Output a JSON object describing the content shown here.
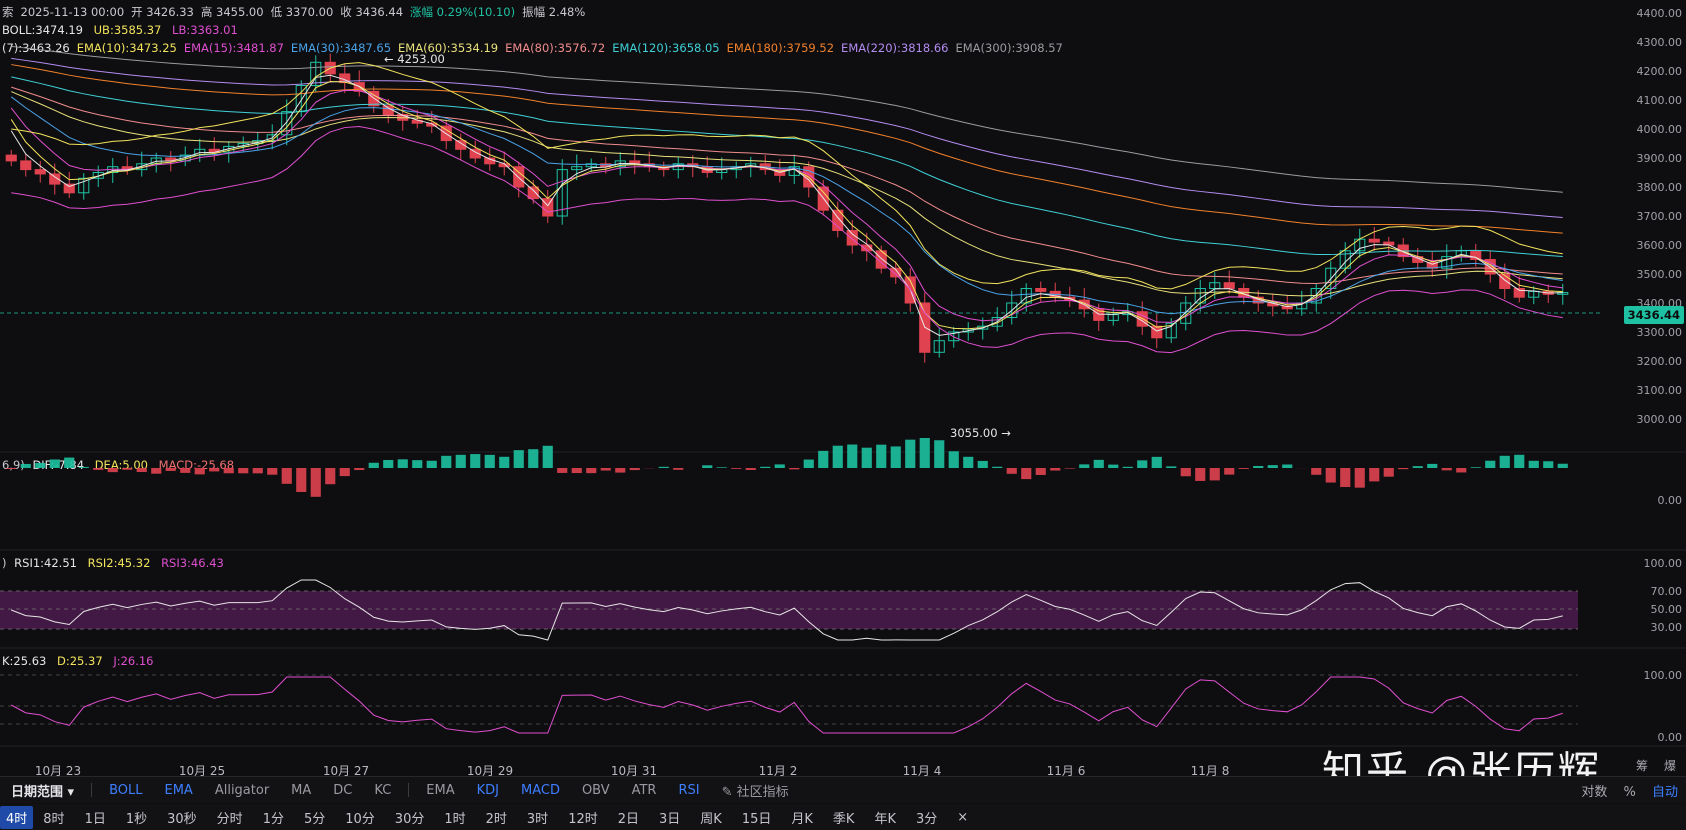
{
  "header": {
    "ohlc_line": [
      "索",
      "2025-11-13 00:00",
      "开 3426.33",
      "高 3455.00",
      "低 3370.00",
      "收 3436.44",
      "涨幅 0.29%(10.10)",
      "振幅 2.48%"
    ],
    "boll": {
      "name": "BOLL:3474.19",
      "ub": "UB:3585.37",
      "lb": "LB:3363.01"
    },
    "ema": [
      {
        "label": "(7):3463.26",
        "color": "#e6e6e6"
      },
      {
        "label": "EMA(10):3473.25",
        "color": "#f2e35b"
      },
      {
        "label": "EMA(15):3481.87",
        "color": "#e04fcf"
      },
      {
        "label": "EMA(30):3487.65",
        "color": "#4aa3e8"
      },
      {
        "label": "EMA(60):3534.19",
        "color": "#e8e07a"
      },
      {
        "label": "EMA(80):3576.72",
        "color": "#f08c8c"
      },
      {
        "label": "EMA(120):3658.05",
        "color": "#3fd0d6"
      },
      {
        "label": "EMA(180):3759.52",
        "color": "#f2812b"
      },
      {
        "label": "EMA(220):3818.66",
        "color": "#b48cf0"
      },
      {
        "label": "EMA(300):3908.57",
        "color": "#9a9aa0"
      }
    ],
    "macd": {
      "prefix": "6,9)",
      "dif": "DIF:-7.84",
      "dea": "DEA:5.00",
      "macd": "MACD:-25.68"
    },
    "rsi": {
      "prefix": ")",
      "rsi1": "RSI1:42.51",
      "rsi2": "RSI2:45.32",
      "rsi3": "RSI3:46.43"
    },
    "kdj": {
      "k": "K:25.63",
      "d": "D:25.37",
      "j": "J:26.16"
    }
  },
  "price_axis": [
    "4400.00",
    "4300.00",
    "4200.00",
    "4100.00",
    "4000.00",
    "3900.00",
    "3800.00",
    "3700.00",
    "3600.00",
    "3500.00",
    "3400.00",
    "3300.00",
    "3200.00",
    "3100.00",
    "3000.00"
  ],
  "current_price": "3436.44",
  "macd_axis": [
    "0.00"
  ],
  "rsi_axis": [
    "100.00",
    "70.00",
    "50.00",
    "30.00"
  ],
  "kdj_axis": [
    "100.00",
    "0.00"
  ],
  "annotations": {
    "high": "← 4253.00",
    "low": "3055.00 →"
  },
  "x_axis": [
    "10月 23",
    "10月 25",
    "10月 27",
    "10月 29",
    "10月 31",
    "11月 2",
    "11月 4",
    "11月 6",
    "11月 8"
  ],
  "toolbar": {
    "range": "日期范围",
    "indicators_main": [
      "BOLL",
      "EMA",
      "Alligator",
      "MA",
      "DC",
      "KC"
    ],
    "indicators_sub": [
      "EMA",
      "KDJ",
      "MACD",
      "OBV",
      "ATR",
      "RSI"
    ],
    "community": "社区指标",
    "right": [
      "对数",
      "%",
      "自动"
    ]
  },
  "timeframes": [
    "4时",
    "8时",
    "1日",
    "1秒",
    "30秒",
    "分时",
    "1分",
    "5分",
    "10分",
    "30分",
    "1时",
    "2时",
    "3时",
    "12时",
    "2日",
    "3日",
    "周K",
    "15日",
    "月K",
    "季K",
    "年K",
    "3分",
    "×"
  ],
  "watermark": "知乎 @张历辉",
  "right_edge": [
    "筹",
    "爆"
  ],
  "chart_data": {
    "type": "candlestick",
    "title": "",
    "x_labels": [
      "10月 23",
      "10月 25",
      "10月 27",
      "10月 29",
      "10月 31",
      "11月 2",
      "11月 4",
      "11月 6",
      "11月 8"
    ],
    "y_range": [
      2950,
      4450
    ],
    "bars_per_day": 6,
    "candles_close": [
      3890,
      3860,
      3845,
      3810,
      3780,
      3830,
      3850,
      3870,
      3860,
      3880,
      3900,
      3890,
      3910,
      3930,
      3920,
      3940,
      3950,
      3960,
      3980,
      4060,
      4150,
      4230,
      4190,
      4160,
      4130,
      4080,
      4050,
      4030,
      4020,
      4010,
      3960,
      3930,
      3900,
      3880,
      3870,
      3800,
      3760,
      3700,
      3860,
      3870,
      3880,
      3870,
      3890,
      3880,
      3870,
      3860,
      3880,
      3870,
      3850,
      3860,
      3870,
      3880,
      3860,
      3840,
      3870,
      3800,
      3720,
      3650,
      3600,
      3580,
      3520,
      3490,
      3400,
      3230,
      3270,
      3300,
      3310,
      3320,
      3350,
      3400,
      3450,
      3440,
      3420,
      3410,
      3380,
      3340,
      3360,
      3370,
      3320,
      3280,
      3330,
      3400,
      3450,
      3470,
      3450,
      3420,
      3400,
      3390,
      3380,
      3400,
      3450,
      3520,
      3580,
      3620,
      3610,
      3600,
      3560,
      3540,
      3520,
      3560,
      3580,
      3550,
      3500,
      3450,
      3420,
      3440,
      3430,
      3436
    ]
  }
}
